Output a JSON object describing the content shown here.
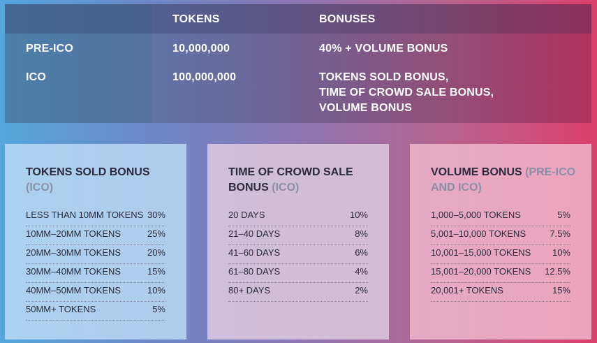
{
  "top_table": {
    "header": {
      "tokens": "TOKENS",
      "bonuses": "BONUSES"
    },
    "rows": [
      {
        "label": "PRE-ICO",
        "tokens": "10,000,000",
        "bonus_lines": [
          "40% + VOLUME BONUS"
        ]
      },
      {
        "label": "ICO",
        "tokens": "100,000,000",
        "bonus_lines": [
          "TOKENS SOLD BONUS,",
          "TIME OF CROWD SALE BONUS,",
          "VOLUME BONUS"
        ]
      }
    ]
  },
  "cards": [
    {
      "title_main": "TOKENS SOLD BONUS ",
      "title_sub": "(ICO)",
      "items": [
        {
          "label": "LESS THAN 10MM TOKENS",
          "value": "30%"
        },
        {
          "label": "10MM–20MM TOKENS",
          "value": "25%"
        },
        {
          "label": "20MM–30MM TOKENS",
          "value": "20%"
        },
        {
          "label": "30MM–40MM TOKENS",
          "value": "15%"
        },
        {
          "label": "40MM–50MM TOKENS",
          "value": "10%"
        },
        {
          "label": "50MM+ TOKENS",
          "value": "5%"
        }
      ]
    },
    {
      "title_main": "TIME OF CROWD SALE BONUS ",
      "title_sub": "(ICO)",
      "items": [
        {
          "label": "20 DAYS",
          "value": "10%"
        },
        {
          "label": "21–40 DAYS",
          "value": "8%"
        },
        {
          "label": "41–60 DAYS",
          "value": "6%"
        },
        {
          "label": "61–80 DAYS",
          "value": "4%"
        },
        {
          "label": "80+ DAYS",
          "value": "2%"
        }
      ]
    },
    {
      "title_main": "VOLUME BONUS ",
      "title_sub": "(PRE-ICO AND ICO)",
      "items": [
        {
          "label": "1,000–5,000 TOKENS",
          "value": "5%"
        },
        {
          "label": "5,001–10,000 TOKENS",
          "value": "7.5%"
        },
        {
          "label": "10,001–15,000 TOKENS",
          "value": "10%"
        },
        {
          "label": "15,001–20,000 TOKENS",
          "value": "12.5%"
        },
        {
          "label": "20,001+ TOKENS",
          "value": "15%"
        }
      ]
    }
  ]
}
